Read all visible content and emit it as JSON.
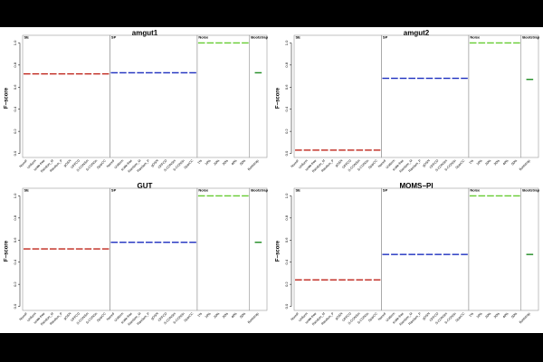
{
  "chart_data": [
    {
      "type": "strip",
      "title": "amgut1",
      "ylabel": "F−score",
      "ylim": [
        -0.02,
        1.02
      ],
      "yticks": [
        {
          "value": 0,
          "label": "0.0"
        },
        {
          "value": 0.2,
          "label": "0.2"
        },
        {
          "value": 0.4,
          "label": "0.4"
        },
        {
          "value": 0.6,
          "label": "0.6"
        },
        {
          "value": 0.8,
          "label": "0.8"
        },
        {
          "value": 1,
          "label": "1.0"
        }
      ],
      "series": [
        {
          "name": "SE",
          "color": "#c0281e",
          "categories": [
            "NormF",
            "Uniform",
            "scale-free",
            "Random_M",
            "Random_P",
            "gOSN",
            "OFFCD",
            "S-CONSm",
            "S-CONSn",
            "SparCC"
          ],
          "values": [
            0.72,
            0.72,
            0.72,
            0.72,
            0.72,
            0.72,
            0.72,
            0.72,
            0.72,
            0.72
          ]
        },
        {
          "name": "SP",
          "color": "#1e2fbf",
          "categories": [
            "NormF",
            "Uniform",
            "scale-free",
            "Random_M",
            "Random_P",
            "gOSN",
            "OFFCD",
            "S-CONSm",
            "S-CONSn",
            "SparCC"
          ],
          "values": [
            0.73,
            0.73,
            0.73,
            0.73,
            0.73,
            0.73,
            0.73,
            0.73,
            0.73,
            0.73
          ]
        },
        {
          "name": "Noise",
          "color": "#66cc33",
          "categories": [
            "1%",
            "10%",
            "20%",
            "30%",
            "40%",
            "50%"
          ],
          "values": [
            1,
            1,
            1,
            1,
            1,
            1
          ]
        },
        {
          "name": "Bootstrap",
          "color": "#1f8b22",
          "categories": [
            "Bootstrap"
          ],
          "values": [
            0.73
          ]
        }
      ]
    },
    {
      "type": "strip",
      "title": "amgut2",
      "ylabel": "F−score",
      "ylim": [
        -0.02,
        1.02
      ],
      "yticks": [
        {
          "value": 0,
          "label": "0.0"
        },
        {
          "value": 0.2,
          "label": "0.2"
        },
        {
          "value": 0.4,
          "label": "0.4"
        },
        {
          "value": 0.6,
          "label": "0.6"
        },
        {
          "value": 0.8,
          "label": "0.8"
        },
        {
          "value": 1,
          "label": "1.0"
        }
      ],
      "series": [
        {
          "name": "SE",
          "color": "#c0281e",
          "categories": [
            "NormF",
            "Uniform",
            "scale-free",
            "Random_M",
            "Random_P",
            "gOSN",
            "OFFCD",
            "S-CONSm",
            "S-CONSn",
            "SparCC"
          ],
          "values": [
            0.03,
            0.03,
            0.03,
            0.03,
            0.03,
            0.03,
            0.03,
            0.03,
            0.03,
            0.03
          ]
        },
        {
          "name": "SP",
          "color": "#1e2fbf",
          "categories": [
            "NormF",
            "Uniform",
            "scale-free",
            "Random_M",
            "Random_P",
            "gOSN",
            "OFFCD",
            "S-CONSm",
            "S-CONSn",
            "SparCC"
          ],
          "values": [
            0.68,
            0.68,
            0.68,
            0.68,
            0.68,
            0.68,
            0.68,
            0.68,
            0.68,
            0.68
          ]
        },
        {
          "name": "Noise",
          "color": "#66cc33",
          "categories": [
            "1%",
            "10%",
            "20%",
            "30%",
            "40%",
            "50%"
          ],
          "values": [
            1,
            1,
            1,
            1,
            1,
            1
          ]
        },
        {
          "name": "Bootstrap",
          "color": "#1f8b22",
          "categories": [
            "Bootstrap"
          ],
          "values": [
            0.67
          ]
        }
      ]
    },
    {
      "type": "strip",
      "title": "GUT",
      "ylabel": "F−score",
      "ylim": [
        -0.02,
        1.02
      ],
      "yticks": [
        {
          "value": 0,
          "label": "0.0"
        },
        {
          "value": 0.2,
          "label": "0.2"
        },
        {
          "value": 0.4,
          "label": "0.4"
        },
        {
          "value": 0.6,
          "label": "0.6"
        },
        {
          "value": 0.8,
          "label": "0.8"
        },
        {
          "value": 1,
          "label": "1.0"
        }
      ],
      "series": [
        {
          "name": "SE",
          "color": "#c0281e",
          "categories": [
            "NormF",
            "Uniform",
            "scale-free",
            "Random_M",
            "Random_P",
            "gOSN",
            "OFFCD",
            "S-CONSm",
            "S-CONSn",
            "SparCC"
          ],
          "values": [
            0.52,
            0.52,
            0.52,
            0.52,
            0.52,
            0.52,
            0.52,
            0.52,
            0.52,
            0.52
          ]
        },
        {
          "name": "SP",
          "color": "#1e2fbf",
          "categories": [
            "NormF",
            "Uniform",
            "scale-free",
            "Random_M",
            "Random_P",
            "gOSN",
            "OFFCD",
            "S-CONSm",
            "S-CONSn",
            "SparCC"
          ],
          "values": [
            0.58,
            0.58,
            0.58,
            0.58,
            0.58,
            0.58,
            0.58,
            0.58,
            0.58,
            0.58
          ]
        },
        {
          "name": "Noise",
          "color": "#66cc33",
          "categories": [
            "1%",
            "10%",
            "20%",
            "30%",
            "40%",
            "50%"
          ],
          "values": [
            1,
            1,
            1,
            1,
            1,
            1
          ]
        },
        {
          "name": "Bootstrap",
          "color": "#1f8b22",
          "categories": [
            "Bootstrap"
          ],
          "values": [
            0.58
          ]
        }
      ]
    },
    {
      "type": "strip",
      "title": "MOMS−PI",
      "ylabel": "F−score",
      "ylim": [
        -0.02,
        1.02
      ],
      "yticks": [
        {
          "value": 0,
          "label": "0.0"
        },
        {
          "value": 0.2,
          "label": "0.2"
        },
        {
          "value": 0.4,
          "label": "0.4"
        },
        {
          "value": 0.6,
          "label": "0.6"
        },
        {
          "value": 0.8,
          "label": "0.8"
        },
        {
          "value": 1,
          "label": "1.0"
        }
      ],
      "series": [
        {
          "name": "SE",
          "color": "#c0281e",
          "categories": [
            "NormF",
            "Uniform",
            "scale-free",
            "Random_M",
            "Random_P",
            "gOSN",
            "OFFCD",
            "S-CONSm",
            "S-CONSn",
            "SparCC"
          ],
          "values": [
            0.24,
            0.24,
            0.24,
            0.24,
            0.24,
            0.24,
            0.24,
            0.24,
            0.24,
            0.24
          ]
        },
        {
          "name": "SP",
          "color": "#1e2fbf",
          "categories": [
            "NormF",
            "Uniform",
            "scale-free",
            "Random_M",
            "Random_P",
            "gOSN",
            "OFFCD",
            "S-CONSm",
            "S-CONSn",
            "SparCC"
          ],
          "values": [
            0.47,
            0.47,
            0.47,
            0.47,
            0.47,
            0.47,
            0.47,
            0.47,
            0.47,
            0.47
          ]
        },
        {
          "name": "Noise",
          "color": "#66cc33",
          "categories": [
            "1%",
            "10%",
            "20%",
            "30%",
            "40%",
            "50%"
          ],
          "values": [
            1,
            1,
            1,
            1,
            1,
            1
          ]
        },
        {
          "name": "Bootstrap",
          "color": "#1f8b22",
          "categories": [
            "Bootstrap"
          ],
          "values": [
            0.47
          ]
        }
      ]
    }
  ]
}
